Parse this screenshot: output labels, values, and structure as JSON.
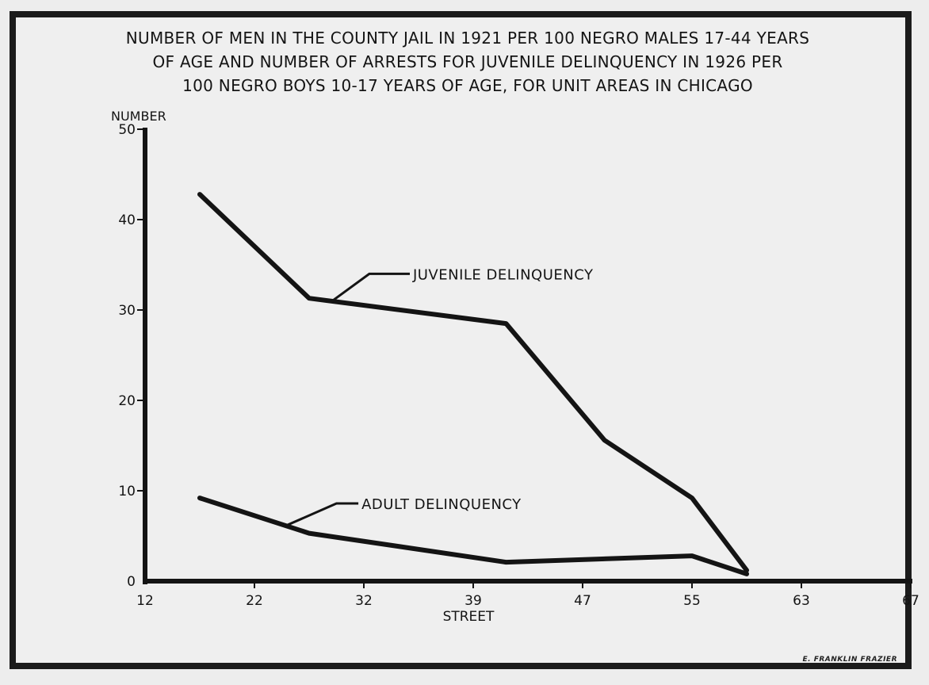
{
  "chart_data": {
    "type": "line",
    "title_lines": [
      "NUMBER OF MEN IN THE COUNTY JAIL IN 1921  PER 100 NEGRO MALES 17-44  YEARS",
      "OF AGE AND NUMBER OF ARRESTS FOR JUVENILE DELINQUENCY IN 1926 PER",
      "100 NEGRO BOYS 10-17 YEARS OF AGE, FOR UNIT AREAS IN CHICAGO"
    ],
    "ylabel": "NUMBER",
    "xlabel": "STREET",
    "x_ticks": [
      "12",
      "22",
      "32",
      "39",
      "47",
      "55",
      "63",
      "67"
    ],
    "y_ticks": [
      "0",
      "10",
      "20",
      "30",
      "40",
      "50"
    ],
    "ylim": [
      0,
      50
    ],
    "grid": false,
    "series": [
      {
        "name": "JUVENILE DELINQUENCY",
        "points": [
          [
            0.5,
            42.8
          ],
          [
            1.5,
            31.3
          ],
          [
            3.3,
            28.5
          ],
          [
            4.2,
            15.6
          ],
          [
            5.0,
            9.2
          ],
          [
            5.5,
            1.2
          ]
        ]
      },
      {
        "name": "ADULT DELINQUENCY",
        "points": [
          [
            0.5,
            9.2
          ],
          [
            1.5,
            5.3
          ],
          [
            3.3,
            2.1
          ],
          [
            5.0,
            2.8
          ],
          [
            5.5,
            0.8
          ]
        ]
      }
    ]
  },
  "credit": "E. FRANKLIN FRAZIER"
}
